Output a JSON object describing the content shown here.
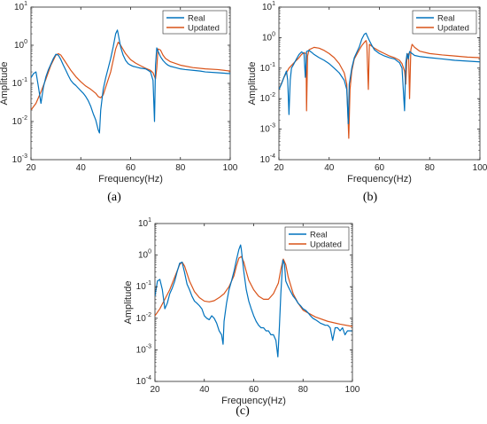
{
  "chart_data": [
    {
      "type": "line",
      "panel_label": "(a)",
      "xlabel": "Frequency(Hz)",
      "ylabel": "Amplitude",
      "xlim": [
        20,
        100
      ],
      "ylim": [
        0.001,
        10
      ],
      "yscale": "log",
      "x_ticks": [
        "20",
        "40",
        "60",
        "80",
        "100"
      ],
      "y_ticks": [
        "10^-3",
        "10^-2",
        "10^-1",
        "10^0",
        "10^1"
      ],
      "legend_position": "top-right",
      "legend": [
        "Real",
        "Updated"
      ],
      "series": [
        {
          "name": "Real",
          "color": "#0072BD",
          "x": [
            20,
            21,
            22,
            23,
            24,
            25,
            26,
            27,
            28,
            29,
            30,
            31,
            32,
            33,
            34,
            35,
            36,
            37,
            38,
            39,
            40,
            41,
            42,
            43,
            44,
            45,
            46,
            47,
            47.5,
            48,
            49,
            50,
            51,
            52,
            53,
            54,
            54.7,
            55,
            56,
            57,
            58,
            59,
            60,
            61,
            62,
            63,
            64,
            65,
            66,
            67,
            68,
            69,
            69.6,
            70,
            70.5,
            71,
            72,
            73,
            74,
            75,
            76,
            78,
            80,
            82,
            85,
            88,
            90,
            95,
            100
          ],
          "y": [
            0.14,
            0.18,
            0.2,
            0.08,
            0.03,
            0.08,
            0.15,
            0.23,
            0.32,
            0.45,
            0.58,
            0.55,
            0.42,
            0.3,
            0.22,
            0.16,
            0.12,
            0.1,
            0.088,
            0.075,
            0.064,
            0.055,
            0.045,
            0.035,
            0.025,
            0.016,
            0.011,
            0.006,
            0.005,
            0.02,
            0.07,
            0.14,
            0.25,
            0.45,
            0.9,
            2.0,
            2.5,
            2.0,
            0.9,
            0.55,
            0.4,
            0.33,
            0.3,
            0.28,
            0.27,
            0.26,
            0.25,
            0.245,
            0.24,
            0.22,
            0.2,
            0.12,
            0.01,
            0.3,
            0.85,
            0.7,
            0.5,
            0.4,
            0.34,
            0.3,
            0.28,
            0.26,
            0.24,
            0.23,
            0.22,
            0.21,
            0.2,
            0.19,
            0.18
          ]
        },
        {
          "name": "Updated",
          "color": "#D95319",
          "x": [
            20,
            22,
            24,
            26,
            28,
            30,
            31,
            32,
            34,
            36,
            38,
            40,
            42,
            44,
            46,
            47,
            48,
            49,
            50,
            52,
            53,
            54,
            55,
            56,
            58,
            60,
            62,
            64,
            66,
            68,
            69,
            70,
            70.5,
            71,
            72,
            73,
            74,
            76,
            80,
            85,
            90,
            95,
            100
          ],
          "y": [
            0.02,
            0.03,
            0.06,
            0.13,
            0.3,
            0.55,
            0.6,
            0.55,
            0.35,
            0.22,
            0.15,
            0.11,
            0.085,
            0.07,
            0.055,
            0.045,
            0.042,
            0.05,
            0.08,
            0.2,
            0.4,
            0.8,
            1.2,
            1.0,
            0.6,
            0.42,
            0.34,
            0.29,
            0.25,
            0.22,
            0.19,
            0.13,
            0.25,
            0.8,
            0.75,
            0.55,
            0.45,
            0.37,
            0.3,
            0.26,
            0.24,
            0.23,
            0.21
          ]
        }
      ]
    },
    {
      "type": "line",
      "panel_label": "(b)",
      "xlabel": "Frequency(Hz)",
      "ylabel": "Amplitude",
      "xlim": [
        20,
        100
      ],
      "ylim": [
        0.0001,
        10
      ],
      "yscale": "log",
      "x_ticks": [
        "20",
        "40",
        "60",
        "80",
        "100"
      ],
      "y_ticks": [
        "10^-4",
        "10^-3",
        "10^-2",
        "10^-1",
        "10^0",
        "10^1"
      ],
      "legend_position": "top-right",
      "legend": [
        "Real",
        "Updated"
      ],
      "series": [
        {
          "name": "Real",
          "color": "#0072BD",
          "x": [
            20,
            21,
            22,
            23,
            23.5,
            24,
            24.5,
            25,
            26,
            27,
            28,
            29,
            30,
            30.5,
            31,
            32,
            33,
            34,
            36,
            38,
            40,
            42,
            44,
            46,
            47,
            47.6,
            48,
            49,
            50,
            52,
            53,
            54,
            54.7,
            55,
            56,
            57,
            58,
            60,
            62,
            64,
            66,
            68,
            69,
            70,
            70.5,
            71,
            71.5,
            72,
            73,
            74,
            76,
            80,
            85,
            90,
            95,
            100
          ],
          "y": [
            0.02,
            0.03,
            0.05,
            0.08,
            0.04,
            0.003,
            0.04,
            0.1,
            0.14,
            0.2,
            0.28,
            0.34,
            0.3,
            0.05,
            0.35,
            0.38,
            0.33,
            0.28,
            0.22,
            0.18,
            0.14,
            0.1,
            0.07,
            0.04,
            0.02,
            0.0015,
            0.03,
            0.1,
            0.22,
            0.5,
            0.9,
            1.3,
            1.4,
            1.2,
            0.8,
            0.55,
            0.4,
            0.3,
            0.25,
            0.22,
            0.2,
            0.15,
            0.1,
            0.004,
            0.15,
            0.3,
            0.2,
            0.35,
            0.3,
            0.26,
            0.24,
            0.22,
            0.2,
            0.18,
            0.17,
            0.16
          ]
        },
        {
          "name": "Updated",
          "color": "#D95319",
          "x": [
            20,
            22,
            24,
            26,
            28,
            29,
            30,
            30.8,
            31,
            31.4,
            32,
            34,
            36,
            38,
            40,
            42,
            44,
            46,
            47,
            47.8,
            48.3,
            49,
            50,
            52,
            53,
            54,
            54.7,
            55,
            55.6,
            56,
            58,
            60,
            62,
            64,
            66,
            68,
            69,
            70,
            70.5,
            71,
            71.6,
            72,
            72.5,
            73,
            74,
            76,
            80,
            85,
            90,
            95,
            100
          ],
          "y": [
            0.02,
            0.05,
            0.1,
            0.15,
            0.22,
            0.28,
            0.32,
            0.3,
            0.004,
            0.25,
            0.4,
            0.48,
            0.45,
            0.38,
            0.3,
            0.22,
            0.14,
            0.07,
            0.03,
            0.0005,
            0.02,
            0.08,
            0.2,
            0.4,
            0.55,
            0.7,
            0.8,
            0.6,
            0.02,
            0.6,
            0.45,
            0.36,
            0.3,
            0.25,
            0.22,
            0.18,
            0.14,
            0.08,
            0.03,
            0.25,
            0.3,
            0.01,
            0.4,
            0.6,
            0.48,
            0.36,
            0.3,
            0.27,
            0.25,
            0.23,
            0.22
          ]
        }
      ]
    },
    {
      "type": "line",
      "panel_label": "(c)",
      "xlabel": "Frequency(Hz)",
      "ylabel": "Amplitude",
      "xlim": [
        20,
        100
      ],
      "ylim": [
        0.0001,
        10
      ],
      "yscale": "log",
      "x_ticks": [
        "20",
        "40",
        "60",
        "80",
        "100"
      ],
      "y_ticks": [
        "10^-4",
        "10^-3",
        "10^-2",
        "10^-1",
        "10^0",
        "10^1"
      ],
      "legend_position": "top-right",
      "legend": [
        "Real",
        "Updated"
      ],
      "series": [
        {
          "name": "Real",
          "color": "#0072BD",
          "x": [
            20,
            21,
            22,
            23,
            24,
            25,
            26,
            27,
            28,
            29,
            30,
            31,
            32,
            33,
            34,
            35,
            36,
            37,
            38,
            39,
            40,
            41,
            42,
            43,
            44,
            45,
            46,
            47,
            47.6,
            48,
            49,
            50,
            51,
            52,
            53,
            54,
            54.7,
            55,
            56,
            57,
            58,
            59,
            60,
            61,
            62,
            63,
            64,
            65,
            66,
            67,
            68,
            69,
            69.8,
            70.4,
            71,
            71.8,
            72.5,
            73,
            74,
            75,
            76,
            77,
            78,
            79,
            80,
            81,
            82,
            83,
            84,
            85,
            86,
            87,
            88,
            89,
            90,
            91,
            92,
            93,
            94,
            95,
            96,
            97,
            98,
            99,
            100
          ],
          "y": [
            0.05,
            0.15,
            0.17,
            0.08,
            0.02,
            0.03,
            0.06,
            0.09,
            0.15,
            0.3,
            0.55,
            0.6,
            0.28,
            0.12,
            0.08,
            0.05,
            0.035,
            0.03,
            0.025,
            0.02,
            0.012,
            0.01,
            0.009,
            0.012,
            0.01,
            0.007,
            0.004,
            0.003,
            0.0015,
            0.008,
            0.03,
            0.08,
            0.15,
            0.3,
            0.7,
            1.5,
            2.1,
            1.5,
            0.3,
            0.08,
            0.035,
            0.02,
            0.012,
            0.008,
            0.006,
            0.005,
            0.005,
            0.004,
            0.004,
            0.003,
            0.003,
            0.002,
            0.0006,
            0.005,
            0.06,
            0.7,
            0.5,
            0.15,
            0.1,
            0.07,
            0.05,
            0.04,
            0.03,
            0.025,
            0.02,
            0.018,
            0.015,
            0.012,
            0.01,
            0.009,
            0.008,
            0.007,
            0.0065,
            0.006,
            0.006,
            0.005,
            0.002,
            0.005,
            0.005,
            0.004,
            0.005,
            0.003,
            0.004,
            0.004,
            0.004
          ]
        },
        {
          "name": "Updated",
          "color": "#D95319",
          "x": [
            20,
            22,
            24,
            26,
            28,
            30,
            31,
            32,
            34,
            36,
            38,
            40,
            42,
            44,
            46,
            48,
            50,
            52,
            53,
            54,
            55,
            56,
            57,
            58,
            60,
            62,
            64,
            66,
            68,
            70,
            71,
            72,
            73,
            74,
            76,
            78,
            80,
            85,
            90,
            95,
            100
          ],
          "y": [
            0.012,
            0.02,
            0.04,
            0.08,
            0.2,
            0.5,
            0.6,
            0.45,
            0.15,
            0.07,
            0.045,
            0.035,
            0.033,
            0.036,
            0.045,
            0.06,
            0.1,
            0.22,
            0.45,
            0.8,
            0.9,
            0.6,
            0.3,
            0.16,
            0.08,
            0.05,
            0.04,
            0.04,
            0.06,
            0.13,
            0.35,
            0.75,
            0.5,
            0.2,
            0.06,
            0.03,
            0.018,
            0.011,
            0.008,
            0.0065,
            0.0055
          ]
        }
      ]
    }
  ]
}
